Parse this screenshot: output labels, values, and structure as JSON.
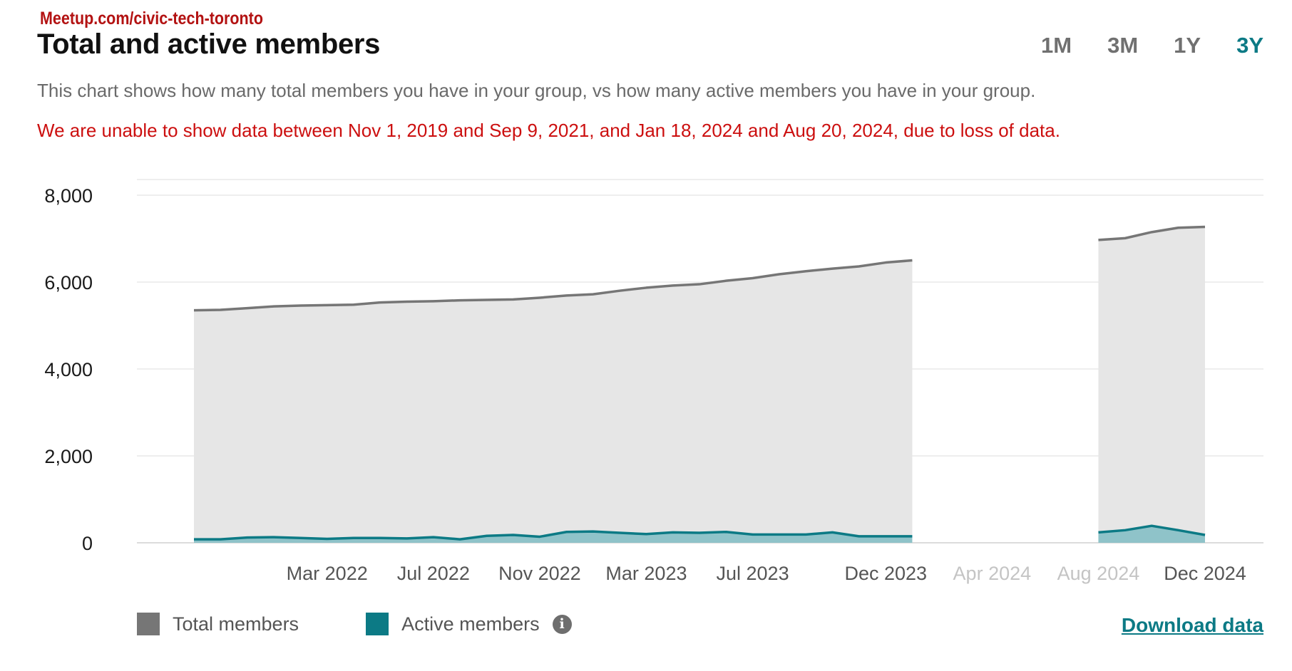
{
  "header": {
    "source": "Meetup.com/civic-tech-toronto",
    "title": "Total and active members",
    "description": "This chart shows how many total members you have in your group, vs how many active members you have in your group.",
    "warning": "We are unable to show data between Nov 1, 2019 and Sep 9, 2021, and Jan 18, 2024 and Aug 20, 2024, due to loss of data.",
    "warning_color": "#cc0f0f"
  },
  "range_tabs": [
    {
      "label": "1M",
      "active": false
    },
    {
      "label": "3M",
      "active": false
    },
    {
      "label": "1Y",
      "active": false
    },
    {
      "label": "3Y",
      "active": true
    }
  ],
  "legend": {
    "total_label": "Total members",
    "active_label": "Active members",
    "info_icon": "i",
    "total_color": "#767676",
    "active_color": "#0c7a85"
  },
  "download_label": "Download data",
  "chart_data": {
    "type": "area",
    "title": "",
    "xlabel": "",
    "ylabel": "",
    "ylim": [
      0,
      8000
    ],
    "y_ticks": [
      0,
      2000,
      4000,
      6000,
      8000
    ],
    "y_tick_labels": [
      "0",
      "2,000",
      "4,000",
      "6,000",
      "8,000"
    ],
    "x_tick_labels": [
      {
        "label": "Mar 2022",
        "t": 2022.167,
        "muted": false
      },
      {
        "label": "Jul 2022",
        "t": 2022.5,
        "muted": false
      },
      {
        "label": "Nov 2022",
        "t": 2022.833,
        "muted": false
      },
      {
        "label": "Mar 2023",
        "t": 2023.167,
        "muted": false
      },
      {
        "label": "Jul 2023",
        "t": 2023.5,
        "muted": false
      },
      {
        "label": "Dec 2023",
        "t": 2023.917,
        "muted": false
      },
      {
        "label": "Apr 2024",
        "t": 2024.25,
        "muted": true
      },
      {
        "label": "Aug 2024",
        "t": 2024.583,
        "muted": true
      },
      {
        "label": "Dec 2024",
        "t": 2024.917,
        "muted": false
      }
    ],
    "grid": true,
    "legend_position": "bottom-left",
    "series": [
      {
        "name": "Total members",
        "color": "#767676",
        "fill": "#e6e6e6",
        "segments": [
          {
            "t": [
              2021.75,
              2021.833,
              2021.917,
              2022.0,
              2022.083,
              2022.167,
              2022.25,
              2022.333,
              2022.417,
              2022.5,
              2022.583,
              2022.667,
              2022.75,
              2022.833,
              2022.917,
              2023.0,
              2023.083,
              2023.167,
              2023.25,
              2023.333,
              2023.417,
              2023.5,
              2023.583,
              2023.667,
              2023.75,
              2023.833,
              2023.917,
              2024.0
            ],
            "values": [
              5350,
              5360,
              5400,
              5440,
              5460,
              5470,
              5480,
              5530,
              5550,
              5560,
              5580,
              5590,
              5600,
              5640,
              5690,
              5720,
              5800,
              5870,
              5920,
              5950,
              6030,
              6090,
              6180,
              6250,
              6310,
              6360,
              6450,
              6500
            ]
          },
          {
            "t": [
              2024.583,
              2024.667,
              2024.75,
              2024.833,
              2024.917
            ],
            "values": [
              6970,
              7010,
              7150,
              7250,
              7270
            ]
          }
        ]
      },
      {
        "name": "Active members",
        "color": "#0c7a85",
        "fill": "#8fc3c9",
        "segments": [
          {
            "t": [
              2021.75,
              2021.833,
              2021.917,
              2022.0,
              2022.083,
              2022.167,
              2022.25,
              2022.333,
              2022.417,
              2022.5,
              2022.583,
              2022.667,
              2022.75,
              2022.833,
              2022.917,
              2023.0,
              2023.083,
              2023.167,
              2023.25,
              2023.333,
              2023.417,
              2023.5,
              2023.583,
              2023.667,
              2023.75,
              2023.833,
              2023.917,
              2024.0
            ],
            "values": [
              80,
              80,
              120,
              130,
              110,
              90,
              110,
              110,
              100,
              130,
              80,
              160,
              180,
              140,
              250,
              260,
              230,
              200,
              240,
              230,
              250,
              190,
              190,
              190,
              240,
              150,
              150,
              150
            ]
          },
          {
            "t": [
              2024.583,
              2024.667,
              2024.75,
              2024.833,
              2024.917
            ],
            "values": [
              240,
              290,
              390,
              290,
              180
            ]
          }
        ]
      }
    ]
  }
}
